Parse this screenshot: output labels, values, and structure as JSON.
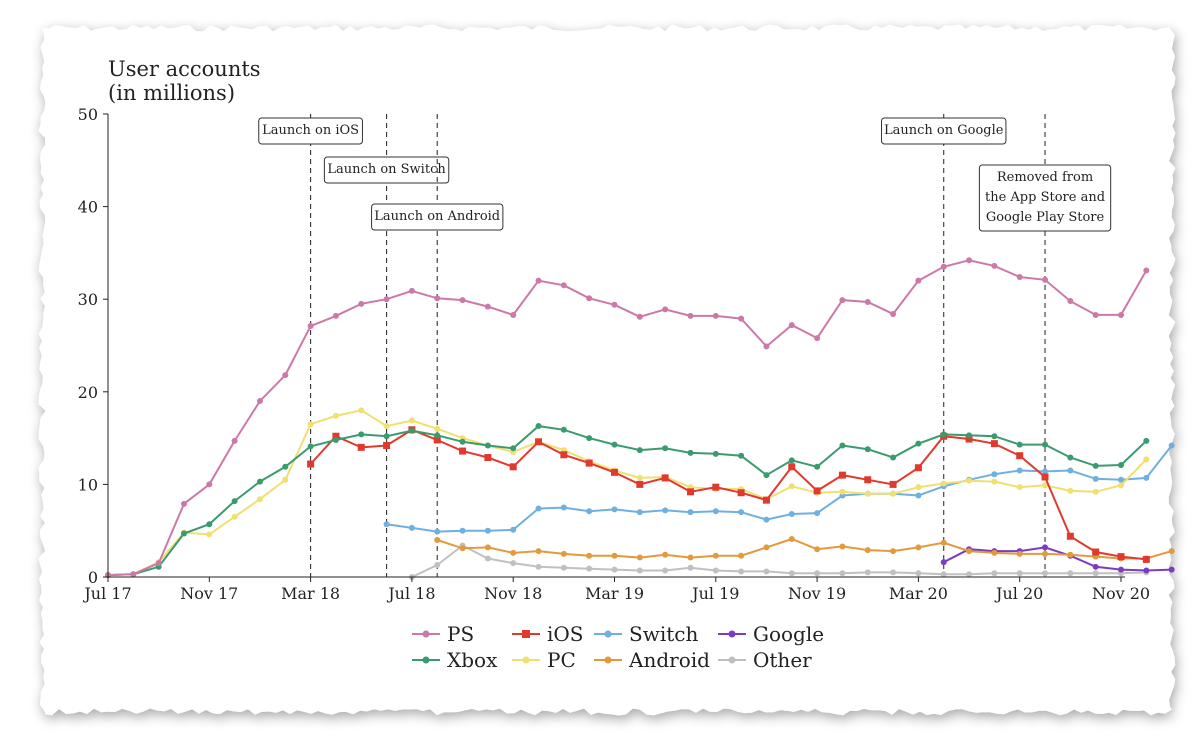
{
  "chart_data": {
    "type": "line",
    "ylabel": [
      "User accounts",
      "(in millions)"
    ],
    "xlabel": "",
    "ylim": [
      0,
      50
    ],
    "yticks": [
      0,
      10,
      20,
      30,
      40,
      50
    ],
    "x_start": "Jul 17",
    "x_end": "Nov 20",
    "xtick_labels": [
      "Jul 17",
      "Nov 17",
      "Mar 18",
      "Jul 18",
      "Nov 18",
      "Mar 19",
      "Jul 19",
      "Nov 19",
      "Mar 20",
      "Jul 20",
      "Nov 20"
    ],
    "grid": false,
    "legend_position": "bottom",
    "annotations": [
      {
        "lines": [
          "Launch on iOS"
        ],
        "x_month": 8
      },
      {
        "lines": [
          "Launch on Switch"
        ],
        "x_month": 11
      },
      {
        "lines": [
          "Launch on Android"
        ],
        "x_month": 13
      },
      {
        "lines": [
          "Launch on Google"
        ],
        "x_month": 33
      },
      {
        "lines": [
          "Removed from",
          "the App Store and",
          "Google Play Store"
        ],
        "x_month": 37
      }
    ],
    "series": [
      {
        "name": "PS",
        "color": "#cc79a7",
        "marker": "circle",
        "start_month": 0,
        "values": [
          0.2,
          0.3,
          1.5,
          7.9,
          10.0,
          14.7,
          19.0,
          21.8,
          27.1,
          28.2,
          29.5,
          30.0,
          30.9,
          30.1,
          29.9,
          29.2,
          28.3,
          32.0,
          31.5,
          30.1,
          29.4,
          28.1,
          28.9,
          28.2,
          28.2,
          27.9,
          24.9,
          27.2,
          25.8,
          29.9,
          29.7,
          28.4,
          32.0,
          33.5,
          34.2,
          33.6,
          32.4,
          32.1,
          29.8,
          28.3,
          28.3,
          33.1
        ]
      },
      {
        "name": "Xbox",
        "color": "#3a9b6e",
        "marker": "circle",
        "start_month": 0,
        "values": [
          0.2,
          0.3,
          1.1,
          4.7,
          5.7,
          8.2,
          10.3,
          11.9,
          14.1,
          14.8,
          15.4,
          15.2,
          15.8,
          15.3,
          14.6,
          14.2,
          13.9,
          16.3,
          15.9,
          15.0,
          14.3,
          13.7,
          13.9,
          13.4,
          13.3,
          13.1,
          11.0,
          12.6,
          11.9,
          14.2,
          13.8,
          12.9,
          14.4,
          15.4,
          15.3,
          15.2,
          14.3,
          14.3,
          12.9,
          12.0,
          12.1,
          14.7
        ]
      },
      {
        "name": "iOS",
        "color": "#e03a2f",
        "marker": "square",
        "start_month": 8,
        "values": [
          12.2,
          15.2,
          14.0,
          14.2,
          15.9,
          14.8,
          13.6,
          12.9,
          11.9,
          14.6,
          13.2,
          12.3,
          11.3,
          10.0,
          10.7,
          9.2,
          9.7,
          9.1,
          8.3,
          11.9,
          9.3,
          11.0,
          10.5,
          10.0,
          11.8,
          15.2,
          14.9,
          14.4,
          13.1,
          10.8,
          4.4,
          2.7,
          2.2,
          1.9
        ]
      },
      {
        "name": "PC",
        "color": "#f0e070",
        "marker": "circle",
        "start_month": 0,
        "values": [
          0.2,
          0.3,
          1.6,
          4.8,
          4.6,
          6.5,
          8.4,
          10.5,
          16.5,
          17.4,
          18.0,
          16.3,
          16.9,
          16.0,
          15.0,
          14.2,
          13.5,
          14.6,
          13.7,
          12.5,
          11.5,
          10.7,
          10.8,
          9.7,
          9.5,
          9.5,
          8.4,
          9.8,
          9.1,
          9.2,
          9.0,
          9.0,
          9.7,
          10.1,
          10.4,
          10.3,
          9.7,
          9.9,
          9.3,
          9.2,
          9.9,
          12.7
        ]
      },
      {
        "name": "Switch",
        "color": "#6fb0e0",
        "marker": "circle",
        "start_month": 11,
        "values": [
          5.7,
          5.3,
          4.9,
          5.0,
          5.0,
          5.1,
          7.4,
          7.5,
          7.1,
          7.3,
          7.0,
          7.2,
          7.0,
          7.1,
          7.0,
          6.2,
          6.8,
          6.9,
          8.8,
          9.0,
          9.0,
          8.8,
          9.8,
          10.5,
          11.1,
          11.5,
          11.4,
          11.5,
          10.6,
          10.5,
          10.7,
          14.2
        ]
      },
      {
        "name": "Android",
        "color": "#e39a3c",
        "marker": "circle",
        "start_month": 13,
        "values": [
          4.0,
          3.1,
          3.2,
          2.6,
          2.8,
          2.5,
          2.3,
          2.3,
          2.1,
          2.4,
          2.1,
          2.3,
          2.3,
          3.2,
          4.1,
          3.0,
          3.3,
          2.9,
          2.8,
          3.2,
          3.7,
          2.8,
          2.6,
          2.5,
          2.5,
          2.4,
          2.2,
          2.0,
          2.0,
          2.8
        ]
      },
      {
        "name": "Google",
        "color": "#7b3cc4",
        "marker": "circle",
        "start_month": 33,
        "values": [
          1.6,
          3.0,
          2.8,
          2.8,
          3.2,
          2.3,
          1.1,
          0.8,
          0.7,
          0.8
        ]
      },
      {
        "name": "Other",
        "color": "#c0c0c0",
        "marker": "circle",
        "start_month": 12,
        "values": [
          0.0,
          1.3,
          3.4,
          2.0,
          1.5,
          1.1,
          1.0,
          0.9,
          0.8,
          0.7,
          0.7,
          1.0,
          0.7,
          0.6,
          0.6,
          0.4,
          0.4,
          0.4,
          0.5,
          0.5,
          0.4,
          0.3,
          0.3,
          0.4,
          0.4,
          0.4,
          0.4,
          0.4,
          0.4,
          0.5
        ]
      }
    ]
  },
  "legend_order": [
    "PS",
    "iOS",
    "Switch",
    "Google",
    "Xbox",
    "PC",
    "Android",
    "Other"
  ]
}
